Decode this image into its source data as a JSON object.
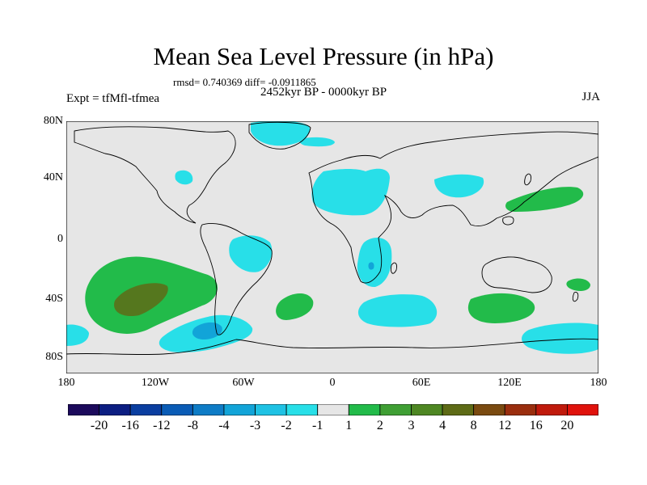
{
  "title": "Mean Sea Level Pressure (in hPa)",
  "stats": "rmsd= 0.740369 diff= -0.0911865",
  "period": "2452kyr BP - 0000kyr BP",
  "experiment": "Expt = tfMfl-tfmea",
  "season": "JJA",
  "lat_labels": [
    "80N",
    "40N",
    "0",
    "40S",
    "80S"
  ],
  "lon_labels": [
    "180",
    "120W",
    "60W",
    "0",
    "60E",
    "120E",
    "180"
  ],
  "colorbar": {
    "labels": [
      "-20",
      "-16",
      "-12",
      "-8",
      "-4",
      "-3",
      "-2",
      "-1",
      "1",
      "2",
      "3",
      "4",
      "8",
      "12",
      "16",
      "20"
    ],
    "colors": [
      "#1c0a5c",
      "#0c1e82",
      "#0a3ea0",
      "#0a5cb6",
      "#0e7cc6",
      "#12a4d8",
      "#1fc2e4",
      "#28dfe8",
      "#e6e6e6",
      "#22bb4a",
      "#3f9f34",
      "#4e8723",
      "#5e6b16",
      "#7a4a10",
      "#9a2e0e",
      "#c01a0c",
      "#e0120c"
    ],
    "neutral_color": "#e6e6e6"
  }
}
